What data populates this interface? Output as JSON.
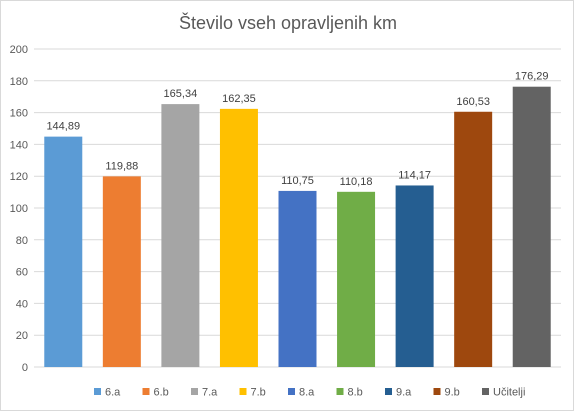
{
  "chart_data": {
    "type": "bar",
    "title": "Število vseh opravljenih km",
    "categories": [
      "6.a",
      "6.b",
      "7.a",
      "7.b",
      "8.a",
      "8.b",
      "9.a",
      "9.b",
      "Učitelji"
    ],
    "values": [
      144.89,
      119.88,
      165.34,
      162.35,
      110.75,
      110.18,
      114.17,
      160.53,
      176.29
    ],
    "data_labels": [
      "144,89",
      "119,88",
      "165,34",
      "162,35",
      "110,75",
      "110,18",
      "114,17",
      "160,53",
      "176,29"
    ],
    "colors": [
      "#5B9BD5",
      "#ED7D31",
      "#A5A5A5",
      "#FFC000",
      "#4472C4",
      "#70AD47",
      "#255E91",
      "#9E480E",
      "#636363"
    ],
    "ylim": [
      0,
      200
    ],
    "yticks": [
      0,
      20,
      40,
      60,
      80,
      100,
      120,
      140,
      160,
      180,
      200
    ],
    "xlabel": "",
    "ylabel": "",
    "grid": true,
    "legend_position": "bottom"
  }
}
